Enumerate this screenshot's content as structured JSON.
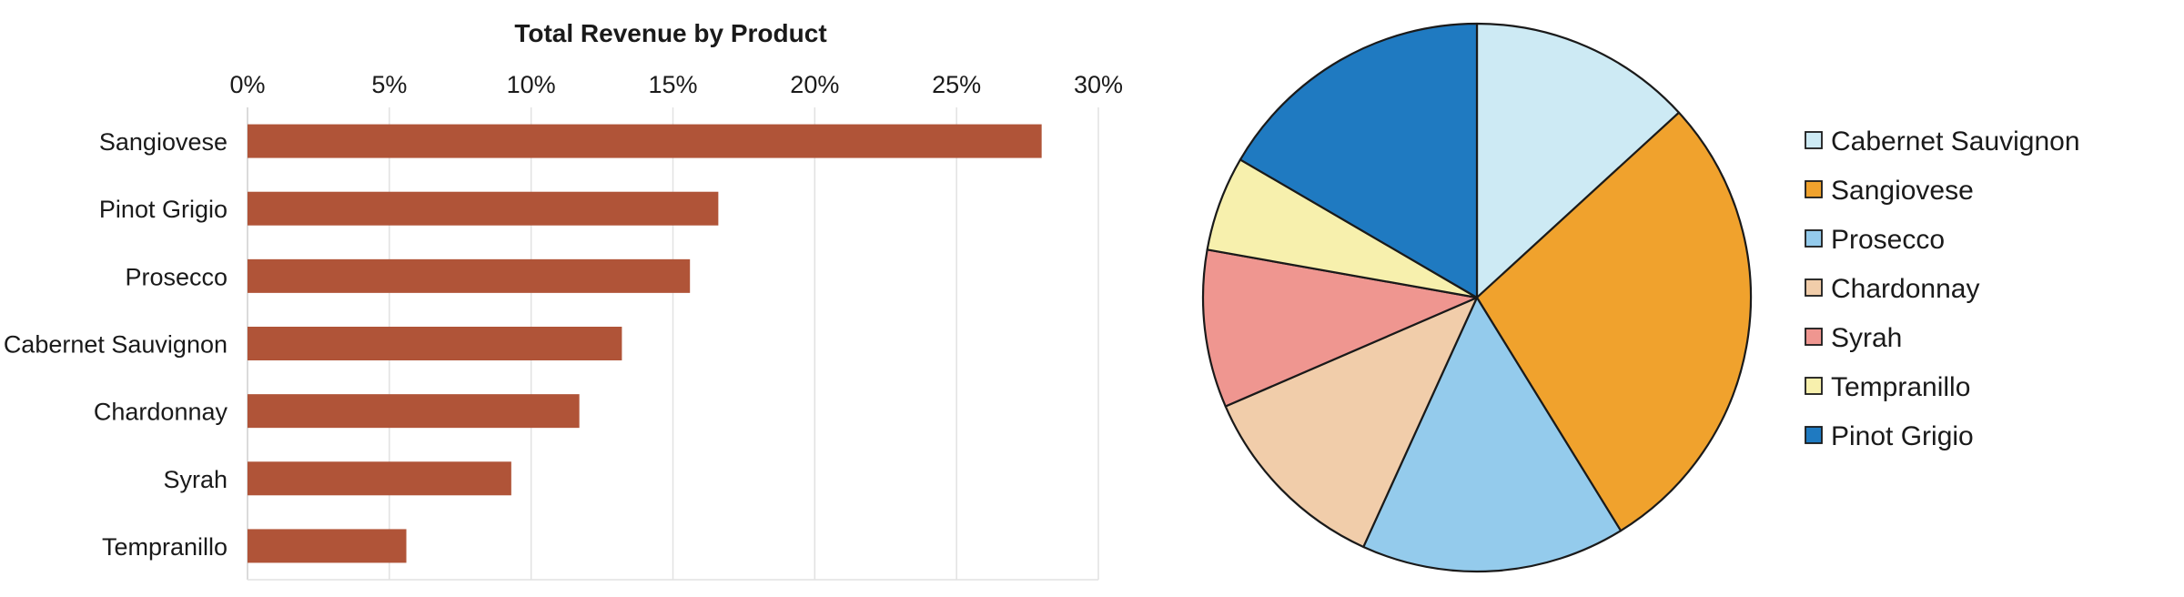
{
  "chart_data": [
    {
      "type": "bar",
      "orientation": "horizontal",
      "title": "Total Revenue by Product",
      "xlabel": "",
      "ylabel": "",
      "x_axis_position": "top",
      "xlim": [
        0,
        30
      ],
      "ticks": [
        0,
        5,
        10,
        15,
        20,
        25,
        30
      ],
      "tick_labels": [
        "0%",
        "5%",
        "10%",
        "15%",
        "20%",
        "25%",
        "30%"
      ],
      "grid": true,
      "categories": [
        "Sangiovese",
        "Pinot Grigio",
        "Prosecco",
        "Cabernet Sauvignon",
        "Chardonnay",
        "Syrah",
        "Tempranillo"
      ],
      "values": [
        28.0,
        16.6,
        15.6,
        13.2,
        11.7,
        9.3,
        5.6
      ],
      "color": "#b05438"
    },
    {
      "type": "pie",
      "start_angle": "top",
      "direction": "clockwise",
      "legend_position": "right",
      "slices": [
        {
          "label": "Cabernet Sauvignon",
          "value": 13.2,
          "color": "#cdeaf4"
        },
        {
          "label": "Sangiovese",
          "value": 28.0,
          "color": "#f0a22d"
        },
        {
          "label": "Prosecco",
          "value": 15.6,
          "color": "#94cbec"
        },
        {
          "label": "Chardonnay",
          "value": 11.7,
          "color": "#f1cdaa"
        },
        {
          "label": "Syrah",
          "value": 9.3,
          "color": "#ef9690"
        },
        {
          "label": "Tempranillo",
          "value": 5.6,
          "color": "#f7f0ad"
        },
        {
          "label": "Pinot Grigio",
          "value": 16.6,
          "color": "#1f7ac1"
        }
      ]
    }
  ]
}
